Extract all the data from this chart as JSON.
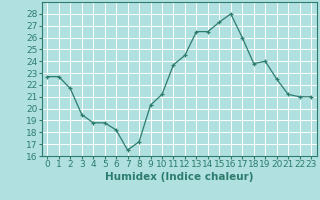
{
  "x": [
    0,
    1,
    2,
    3,
    4,
    5,
    6,
    7,
    8,
    9,
    10,
    11,
    12,
    13,
    14,
    15,
    16,
    17,
    18,
    19,
    20,
    21,
    22,
    23
  ],
  "y": [
    22.7,
    22.7,
    21.7,
    19.5,
    18.8,
    18.8,
    18.2,
    16.5,
    17.2,
    20.3,
    21.2,
    23.7,
    24.5,
    26.5,
    26.5,
    27.3,
    28.0,
    26.0,
    23.8,
    24.0,
    22.5,
    21.2,
    21.0,
    21.0
  ],
  "xlabel": "Humidex (Indice chaleur)",
  "ylim": [
    16,
    29
  ],
  "xlim": [
    -0.5,
    23.5
  ],
  "yticks": [
    16,
    17,
    18,
    19,
    20,
    21,
    22,
    23,
    24,
    25,
    26,
    27,
    28
  ],
  "xticks": [
    0,
    1,
    2,
    3,
    4,
    5,
    6,
    7,
    8,
    9,
    10,
    11,
    12,
    13,
    14,
    15,
    16,
    17,
    18,
    19,
    20,
    21,
    22,
    23
  ],
  "line_color": "#2d7d6e",
  "marker": "+",
  "bg_color": "#b0e0e0",
  "grid_color": "#ffffff",
  "tick_label_fontsize": 6.5,
  "xlabel_fontsize": 7.5
}
